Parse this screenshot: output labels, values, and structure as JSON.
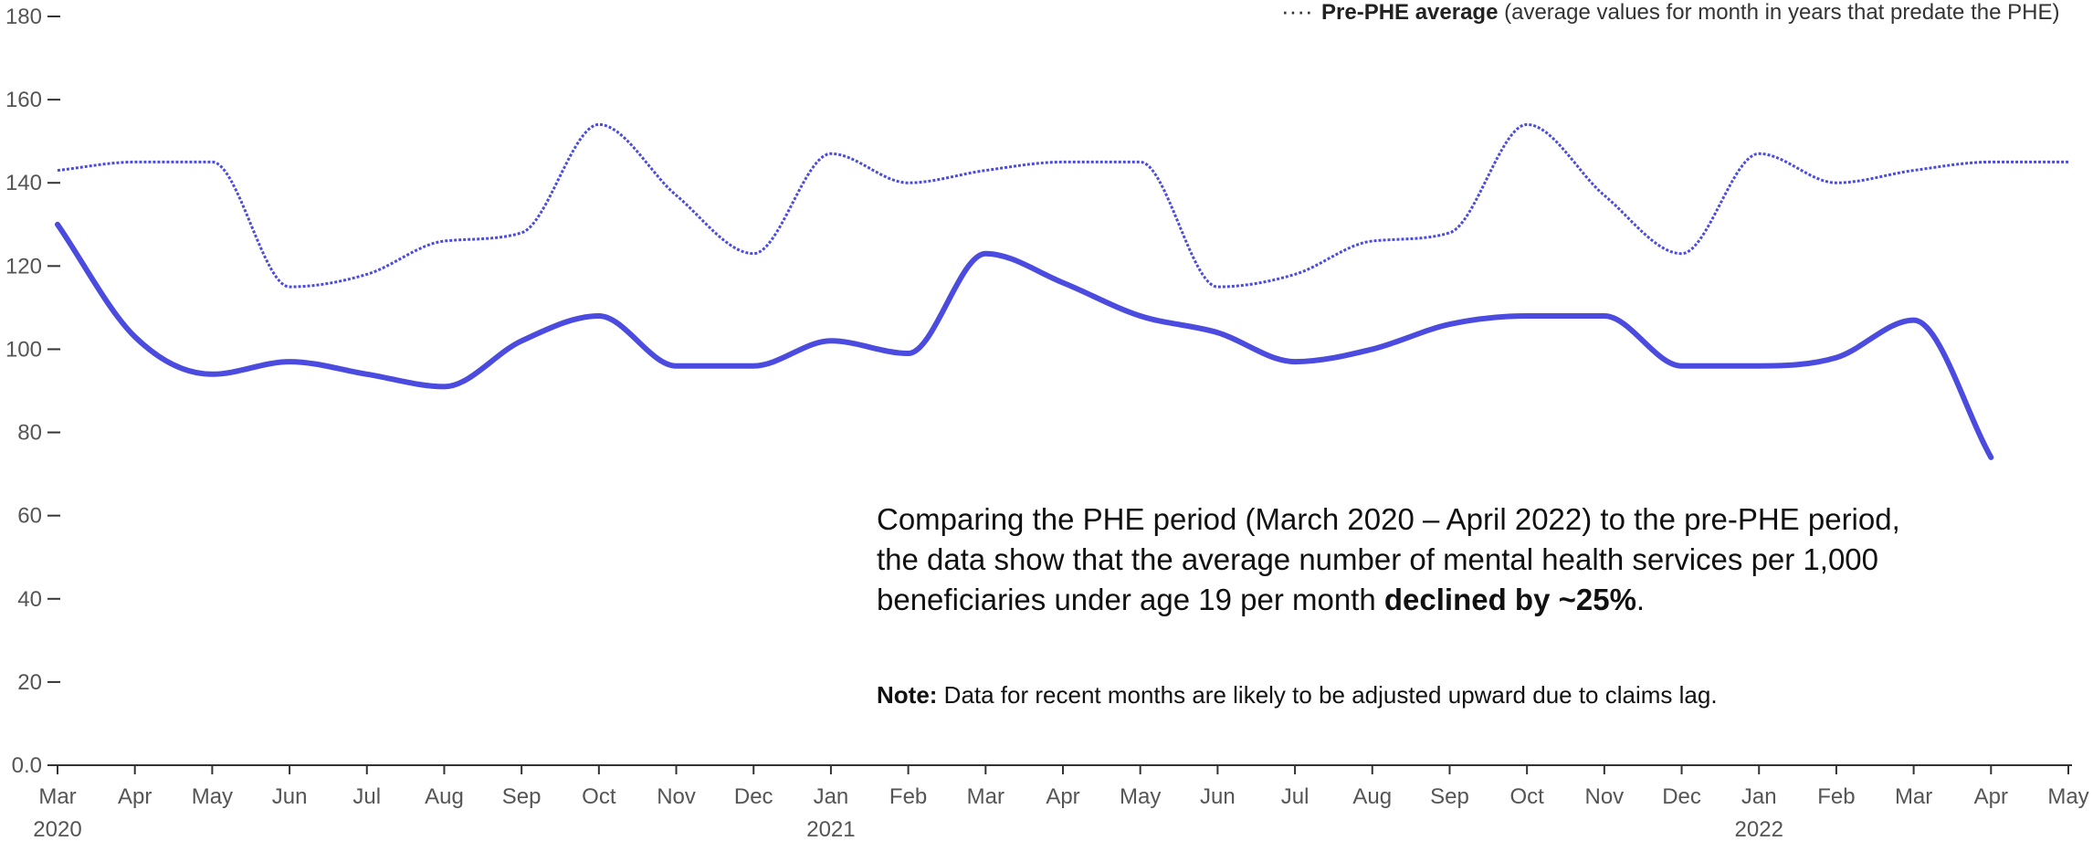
{
  "chart_data": {
    "type": "line",
    "ylim": [
      0,
      180
    ],
    "yticks": [
      "0.0",
      "20",
      "40",
      "60",
      "80",
      "100",
      "120",
      "140",
      "160",
      "180"
    ],
    "x_month_labels": [
      "Mar",
      "Apr",
      "May",
      "Jun",
      "Jul",
      "Aug",
      "Sep",
      "Oct",
      "Nov",
      "Dec",
      "Jan",
      "Feb",
      "Mar",
      "Apr",
      "May",
      "Jun",
      "Jul",
      "Aug",
      "Sep",
      "Oct",
      "Nov",
      "Dec",
      "Jan",
      "Feb",
      "Mar",
      "Apr",
      "May"
    ],
    "x_year_labels": [
      {
        "label": "2020",
        "month_index": 0
      },
      {
        "label": "2021",
        "month_index": 10
      },
      {
        "label": "2022",
        "month_index": 22
      }
    ],
    "series": [
      {
        "name": "",
        "style": "solid",
        "color": "#4b4be0",
        "values": [
          130,
          103,
          94,
          97,
          94,
          91,
          102,
          108,
          96,
          96,
          102,
          99,
          123,
          116,
          108,
          104,
          97,
          100,
          106,
          108,
          108,
          96,
          96,
          98,
          107,
          74
        ]
      },
      {
        "name": "Pre-PHE average",
        "style": "dotted",
        "color": "#4b4be0",
        "values": [
          143,
          145,
          145,
          115,
          118,
          126,
          128,
          154,
          137,
          123,
          147,
          140,
          143,
          145,
          145,
          115,
          118,
          126,
          128,
          154,
          137,
          123,
          147,
          140,
          143,
          145,
          145
        ]
      }
    ],
    "legend": {
      "marker": "····",
      "bold": "Pre-PHE average",
      "rest": " (average values for month in years that predate the PHE)"
    }
  },
  "annotation": {
    "line1": "Comparing the PHE period (March 2020 – April 2022) to the pre-PHE period,",
    "line2": "the data show that the average number of mental health services per 1,000",
    "line3_before": "beneficiaries under age 19 per month ",
    "line3_bold": "declined by ~25%",
    "line3_after": "."
  },
  "note": {
    "bold": "Note:",
    "text": " Data for recent months are likely to be adjusted upward due to claims lag."
  }
}
